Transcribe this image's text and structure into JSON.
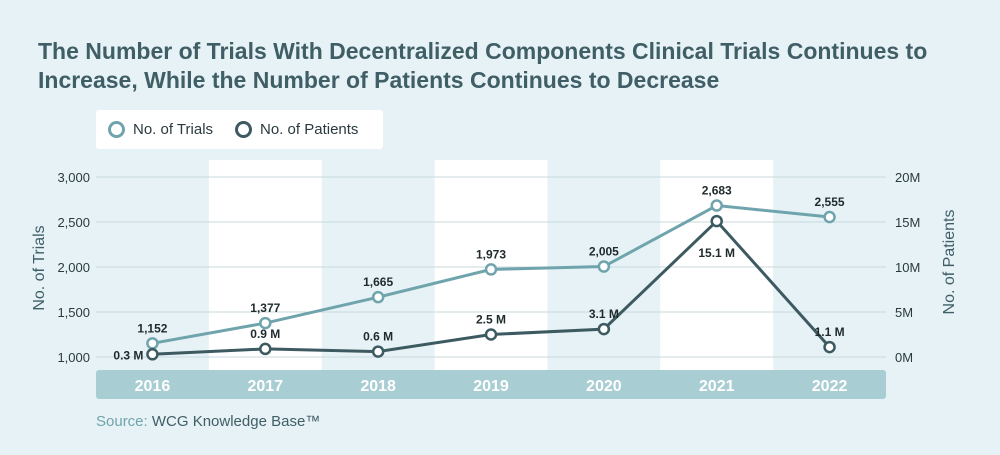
{
  "title": "The Number of Trials With Decentralized Components Clinical Trials Continues to Increase, While the Number of Patients Continues to Decrease",
  "legend": {
    "trials_label": "No. of Trials",
    "patients_label": "No. of Patients"
  },
  "source": {
    "prefix": "Source: ",
    "brand": "WCG Knowledge Base™"
  },
  "colors": {
    "background": "#e6f2f6",
    "band": "#ffffff",
    "trials": "#6fa4ad",
    "patients": "#3d5a61",
    "title": "#3f5e66",
    "xbar": "#a8cdd3"
  },
  "chart_data": {
    "type": "line",
    "x": [
      "2016",
      "2017",
      "2018",
      "2019",
      "2020",
      "2021",
      "2022"
    ],
    "ylabel": "No. of Trials",
    "y2label": "No. of Patients",
    "ylim": [
      1000,
      3000
    ],
    "y2lim": [
      0,
      20
    ],
    "yticks": [
      "1,000",
      "1,500",
      "2,000",
      "2,500",
      "3,000"
    ],
    "y2ticks": [
      "0M",
      "5M",
      "10M",
      "15M",
      "20M"
    ],
    "grid": true,
    "legend_position": "top-left",
    "series": [
      {
        "name": "No. of Trials",
        "axis": "left",
        "values": [
          1152,
          1377,
          1665,
          1973,
          2005,
          2683,
          2555
        ],
        "labels": [
          "1,152",
          "1,377",
          "1,665",
          "1,973",
          "2,005",
          "2,683",
          "2,555"
        ]
      },
      {
        "name": "No. of Patients",
        "axis": "right",
        "values": [
          0.3,
          0.9,
          0.6,
          2.5,
          3.1,
          15.1,
          1.1
        ],
        "labels": [
          "0.3 M",
          "0.9 M",
          "0.6 M",
          "2.5 M",
          "3.1 M",
          "15.1 M",
          "1.1 M"
        ]
      }
    ]
  }
}
